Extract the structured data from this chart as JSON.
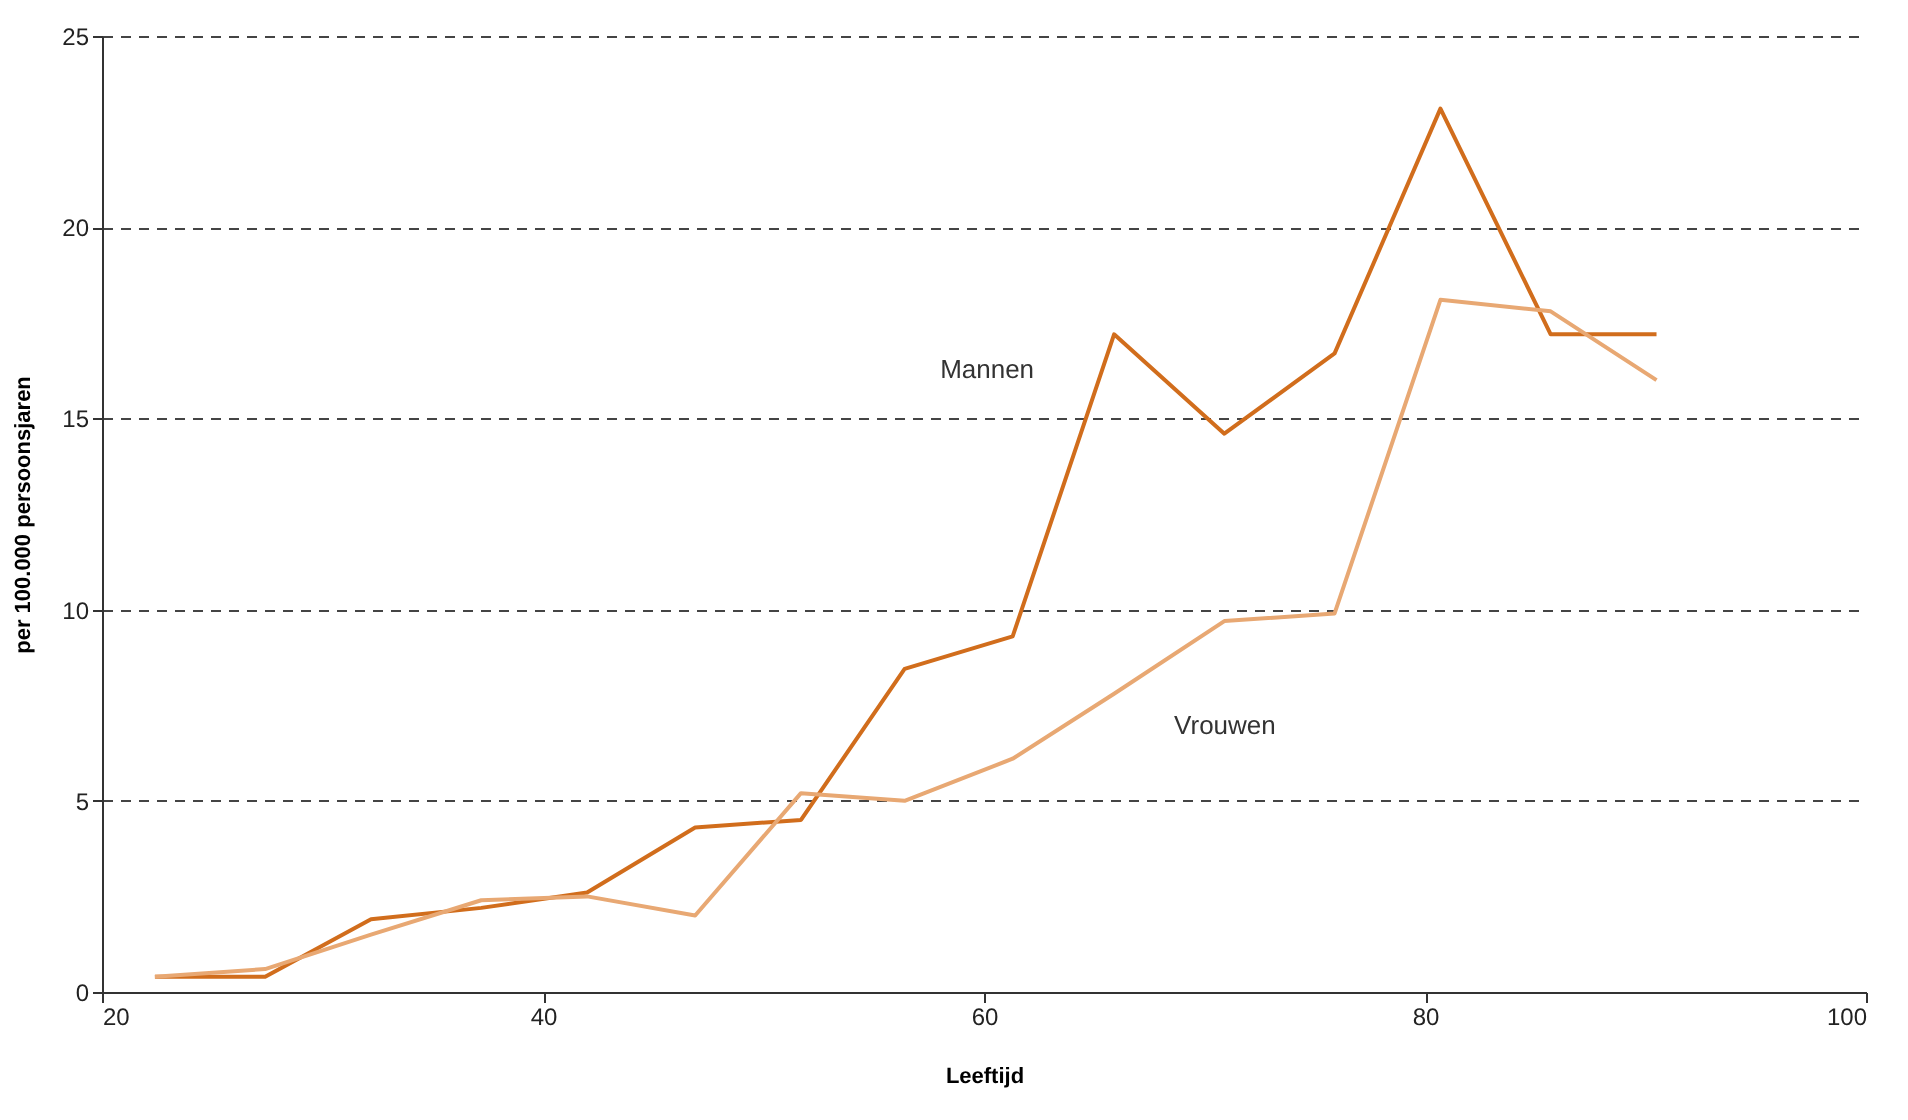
{
  "chart_data": {
    "type": "line",
    "xlabel": "Leeftijd",
    "ylabel": "per 100.000 persoonsjaren",
    "x": [
      22.4,
      27.4,
      32.2,
      37.2,
      42.0,
      46.9,
      51.7,
      56.4,
      61.3,
      65.9,
      70.9,
      75.9,
      80.7,
      85.7,
      90.5
    ],
    "series": [
      {
        "name": "Mannen",
        "color": "#d16d1c",
        "values": [
          0.4,
          0.4,
          1.9,
          2.2,
          2.6,
          4.3,
          4.5,
          8.45,
          9.3,
          17.2,
          14.6,
          16.7,
          23.1,
          17.2,
          17.2
        ]
      },
      {
        "name": "Vrouwen",
        "color": "#e8a873",
        "values": [
          0.4,
          0.6,
          1.5,
          2.4,
          2.5,
          2.0,
          5.2,
          5.0,
          6.1,
          7.8,
          9.7,
          9.9,
          18.1,
          17.8,
          16.0
        ]
      }
    ],
    "xlim": [
      20,
      100
    ],
    "xticks": [
      20,
      40,
      60,
      80,
      100
    ],
    "ylim": [
      0,
      25
    ],
    "yticks": [
      0,
      5,
      10,
      15,
      20,
      25
    ],
    "grid": "y",
    "marker": "none",
    "line_style": "solid"
  }
}
